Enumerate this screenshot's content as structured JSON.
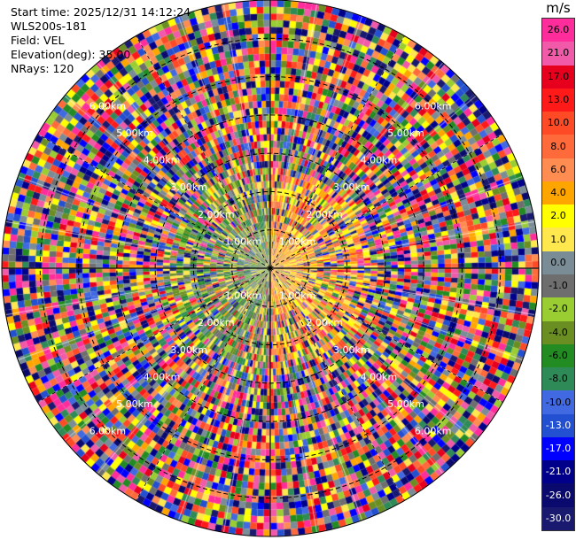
{
  "info": {
    "start_time": "Start time: 2025/12/31 14:12:24",
    "instrument": "WLS200s-181",
    "field": "Field: VEL",
    "elevation": "Elevation(deg): 35.00",
    "nrays": "NRays: 120"
  },
  "chart_data": {
    "type": "heatmap",
    "projection": "polar-ppi",
    "field": "VEL",
    "unit": "m/s",
    "max_range_km": 7,
    "ray_count": 120,
    "range_ring_labels": [
      {
        "text": "1.00km",
        "km": 1
      },
      {
        "text": "2.00km",
        "km": 2
      },
      {
        "text": "3.00km",
        "km": 3
      },
      {
        "text": "4.00km",
        "km": 4
      },
      {
        "text": "5.00km",
        "km": 5
      },
      {
        "text": "6.00km",
        "km": 6
      }
    ],
    "colorbar": {
      "unit": "m/s",
      "ticks": [
        "26.0",
        "21.0",
        "17.0",
        "13.0",
        "10.0",
        "8.0",
        "6.0",
        "4.0",
        "2.0",
        "1.0",
        "0.0",
        "-1.0",
        "-2.0",
        "-4.0",
        "-6.0",
        "-8.0",
        "-10.0",
        "-13.0",
        "-17.0",
        "-21.0",
        "-26.0",
        "-30.0"
      ],
      "colors": [
        "#ff2d9b",
        "#f05aa8",
        "#e6001e",
        "#ff1a1a",
        "#ff4a26",
        "#ff6a3a",
        "#ff8c50",
        "#ffa500",
        "#ffff00",
        "#ffe84d",
        "#7a8c96",
        "#6e6e6e",
        "#9acd32",
        "#6b8e23",
        "#228b22",
        "#2e8b57",
        "#4169e1",
        "#2350d0",
        "#0000ff",
        "#00008b",
        "#0a0a6e",
        "#191970"
      ]
    }
  }
}
